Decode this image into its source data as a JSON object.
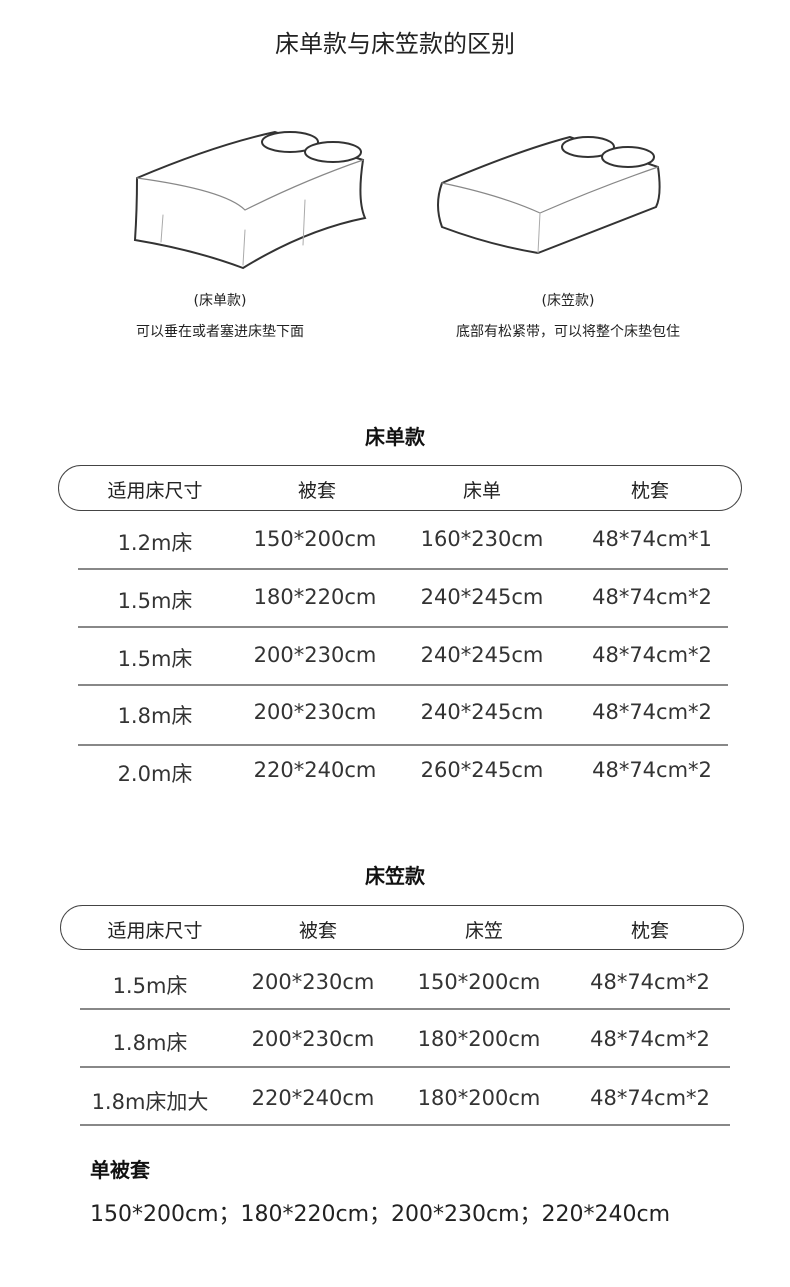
{
  "title": "床单款与床笠款的区别",
  "illustrations": [
    {
      "icon": "flat-sheet-bed-illustration",
      "label": "(床单款)",
      "desc": "可以垂在或者塞进床垫下面"
    },
    {
      "icon": "fitted-sheet-bed-illustration",
      "label": "(床笠款)",
      "desc": "底部有松紧带，可以将整个床垫包住"
    }
  ],
  "flat_table": {
    "title": "床单款",
    "headers": [
      "适用床尺寸",
      "被套",
      "床单",
      "枕套"
    ],
    "rows": [
      [
        "1.2m床",
        "150*200cm",
        "160*230cm",
        "48*74cm*1"
      ],
      [
        "1.5m床",
        "180*220cm",
        "240*245cm",
        "48*74cm*2"
      ],
      [
        "1.5m床",
        "200*230cm",
        "240*245cm",
        "48*74cm*2"
      ],
      [
        "1.8m床",
        "200*230cm",
        "240*245cm",
        "48*74cm*2"
      ],
      [
        "2.0m床",
        "220*240cm",
        "260*245cm",
        "48*74cm*2"
      ]
    ]
  },
  "fitted_table": {
    "title": "床笠款",
    "headers": [
      "适用床尺寸",
      "被套",
      "床笠",
      "枕套"
    ],
    "rows": [
      [
        "1.5m床",
        "200*230cm",
        "150*200cm",
        "48*74cm*2"
      ],
      [
        "1.8m床",
        "200*230cm",
        "180*200cm",
        "48*74cm*2"
      ],
      [
        "1.8m床加大",
        "220*240cm",
        "180*200cm",
        "48*74cm*2"
      ]
    ]
  },
  "single_duvet": {
    "title": "单被套",
    "sizes": "150*200cm；180*220cm；200*230cm；220*240cm"
  }
}
